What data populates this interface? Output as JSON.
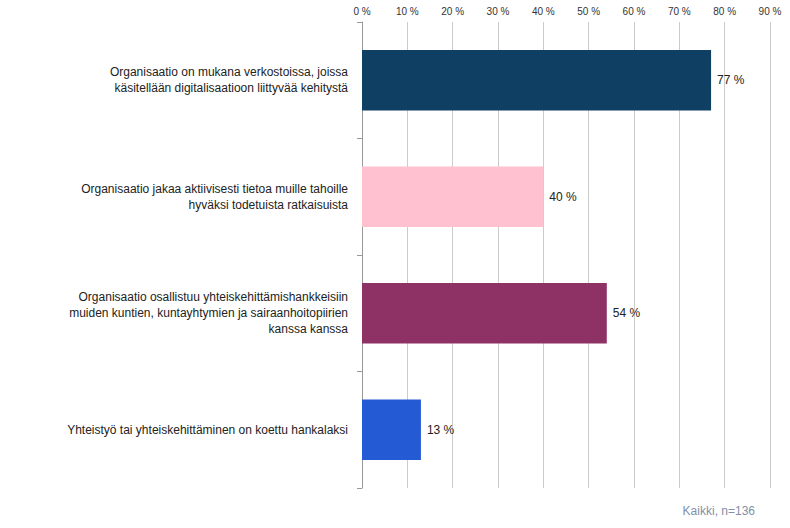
{
  "chart_data": {
    "type": "bar",
    "orientation": "horizontal",
    "categories": [
      "Organisaatio on mukana verkostoissa, joissa\nkäsitellään digitalisaatioon liittyvää kehitystä",
      "Organisaatio jakaa aktiivisesti tietoa muille tahoille\nhyväksi todetuista ratkaisuista",
      "Organisaatio osallistuu yhteiskehittämishankkeisiin\nmuiden kuntien, kuntayhtymien ja sairaanhoitopiirien\nkanssa kanssa",
      "Yhteistyö tai yhteiskehittäminen on koettu hankalaksi"
    ],
    "values": [
      77,
      40,
      54,
      13
    ],
    "value_labels": [
      "77 %",
      "40 %",
      "54 %",
      "13 %"
    ],
    "colors": [
      "#0f3f62",
      "#ffc0cf",
      "#8e3266",
      "#245ad4"
    ],
    "xlim": [
      0,
      90
    ],
    "xticks": [
      {
        "value": 0,
        "label": "0 %"
      },
      {
        "value": 10,
        "label": "10 %"
      },
      {
        "value": 20,
        "label": "20 %"
      },
      {
        "value": 30,
        "label": "30 %"
      },
      {
        "value": 40,
        "label": "40 %"
      },
      {
        "value": 50,
        "label": "50 %"
      },
      {
        "value": 60,
        "label": "60 %"
      },
      {
        "value": 70,
        "label": "70 %"
      },
      {
        "value": 80,
        "label": "80 %"
      },
      {
        "value": 90,
        "label": "90 %"
      }
    ],
    "grid": true,
    "data_labels": true,
    "annotations": [
      "Kaikki, n=136"
    ]
  }
}
